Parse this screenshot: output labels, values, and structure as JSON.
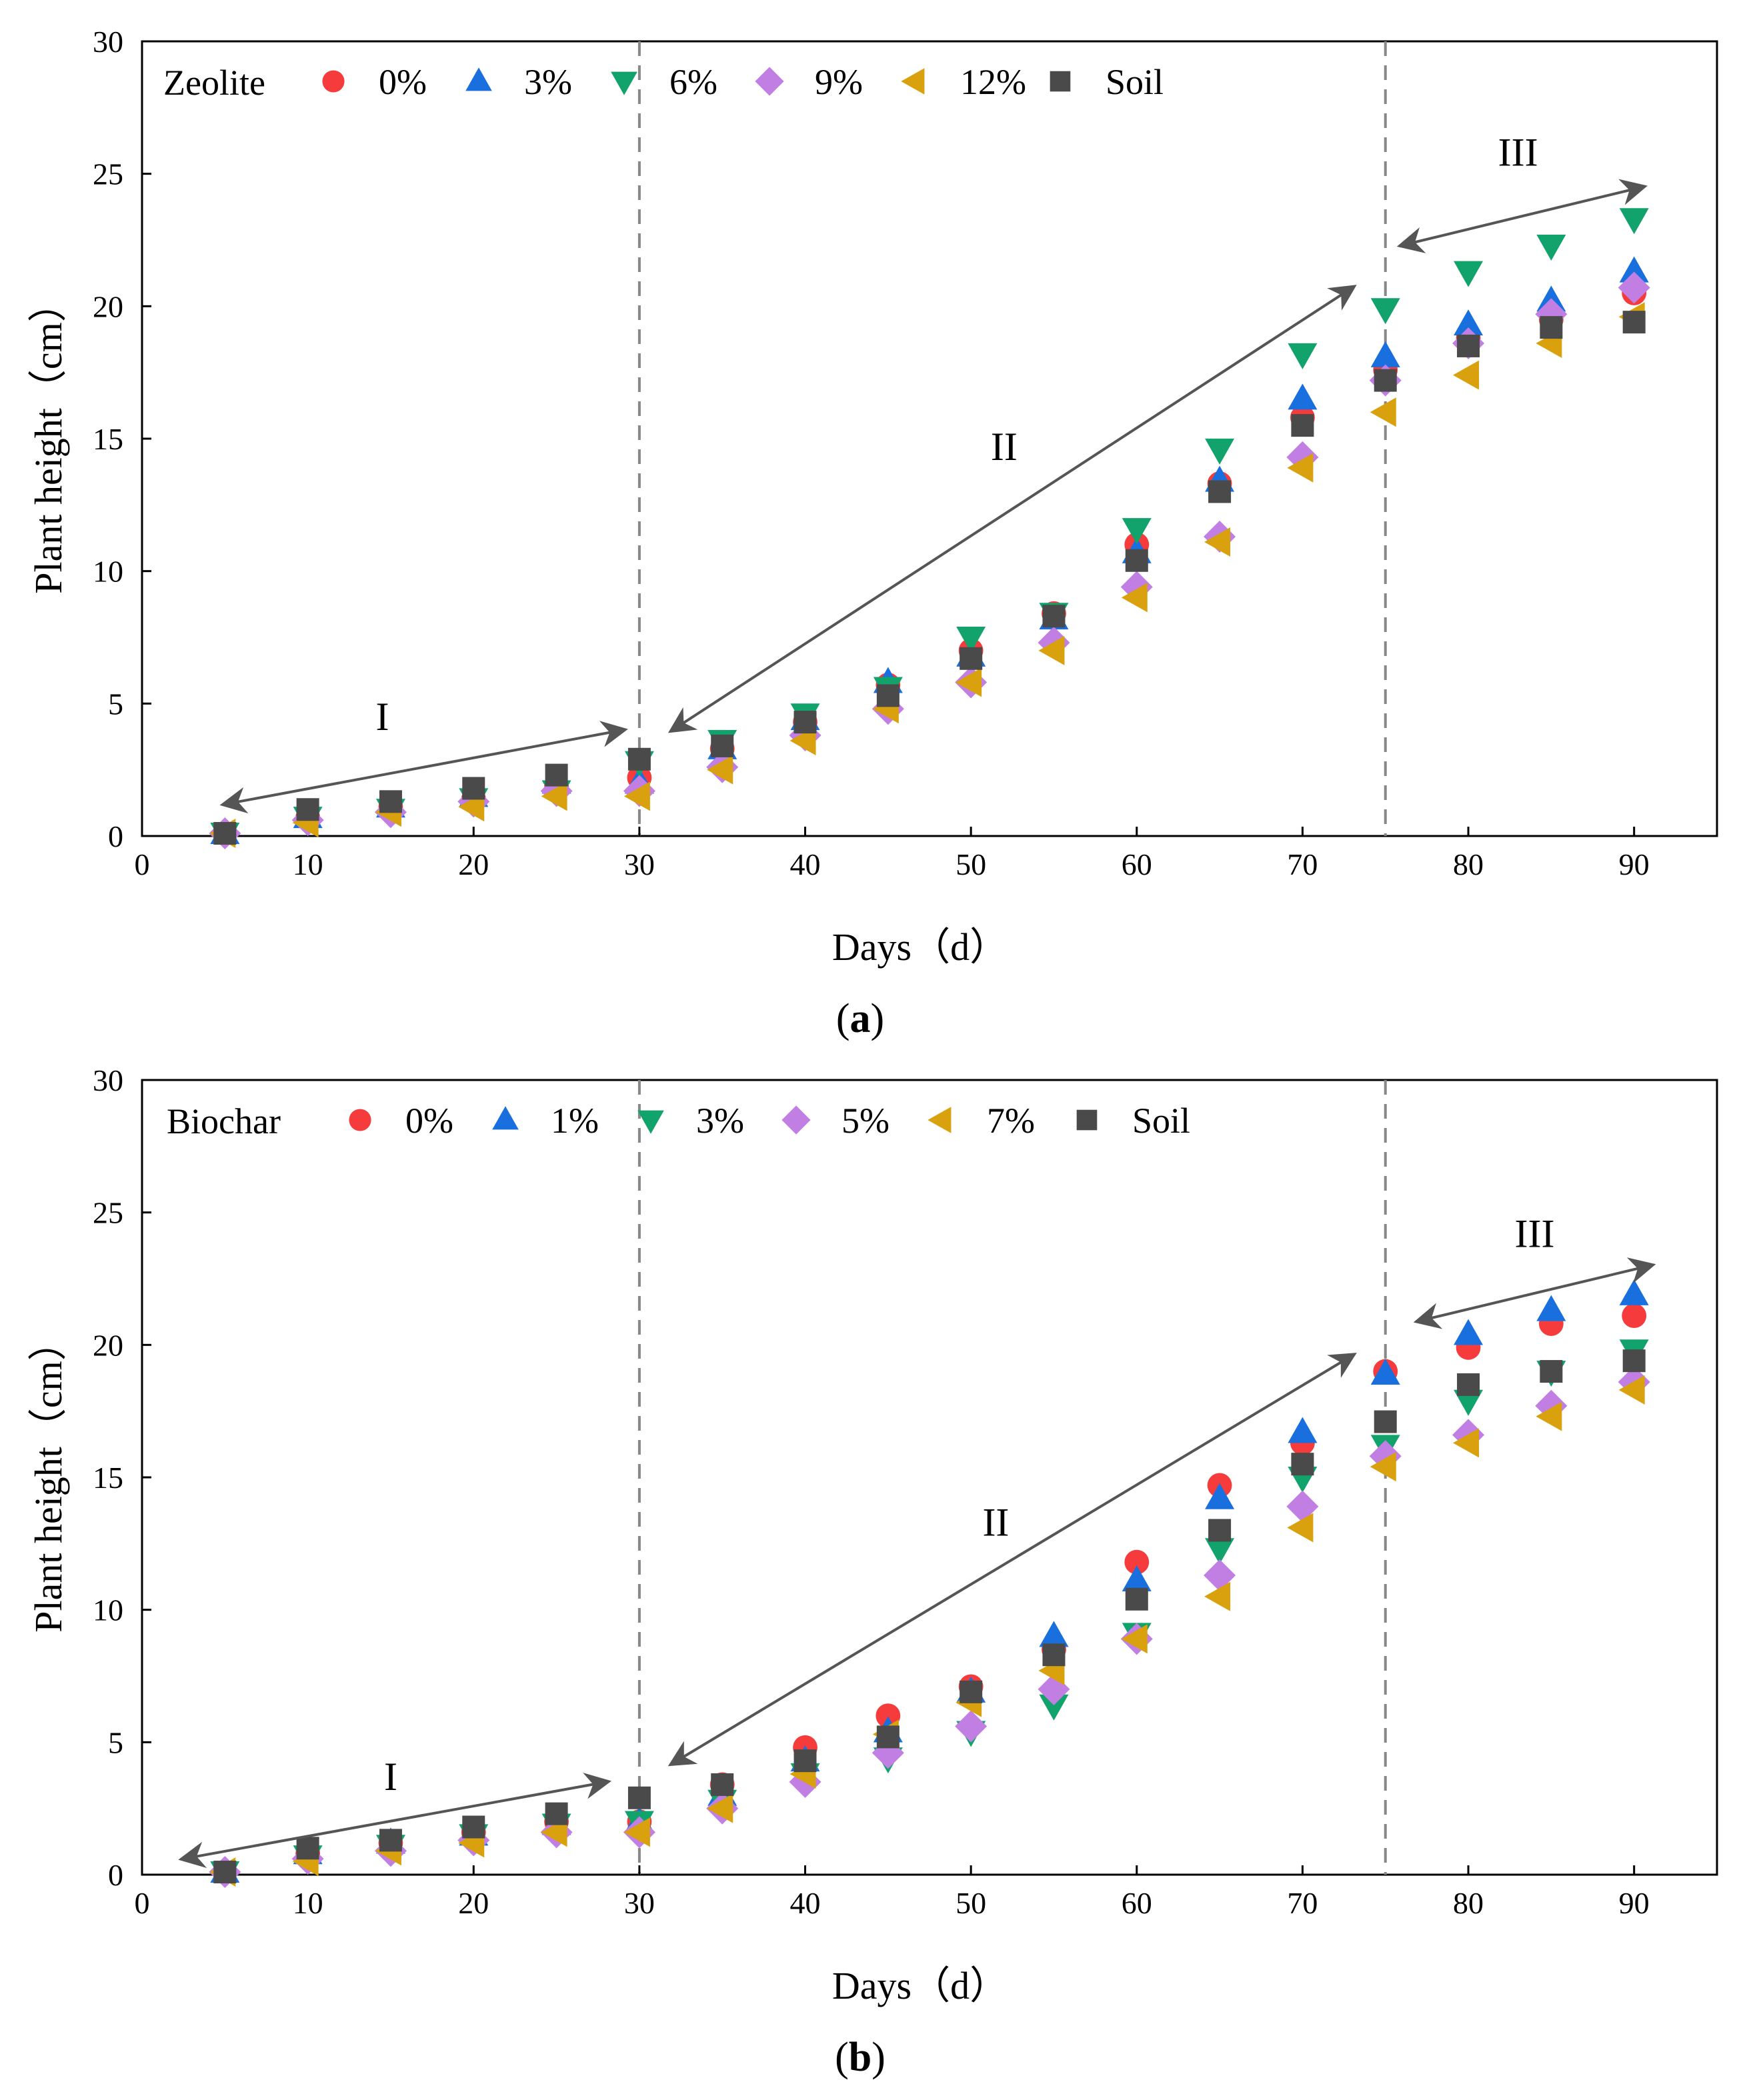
{
  "chart_data": [
    {
      "type": "scatter",
      "panel_label": "a",
      "title": "",
      "xlabel": "Days（d）",
      "ylabel": "Plant height（cm）",
      "xlim": [
        0,
        95
      ],
      "ylim": [
        0,
        30
      ],
      "xticks": [
        0,
        10,
        20,
        30,
        40,
        50,
        60,
        70,
        80,
        90
      ],
      "yticks": [
        0,
        5,
        10,
        15,
        20,
        25,
        30
      ],
      "legend_title": "Zeolite",
      "legend_position": "top",
      "x": [
        5,
        10,
        15,
        20,
        25,
        30,
        35,
        40,
        45,
        50,
        55,
        60,
        65,
        70,
        75,
        80,
        85,
        90
      ],
      "series": [
        {
          "name": "0%",
          "marker": "circle",
          "color": "#f53b3b",
          "values": [
            0.1,
            0.7,
            1.1,
            1.4,
            1.9,
            2.2,
            3.3,
            4.3,
            5.7,
            7.0,
            8.4,
            11.0,
            13.3,
            15.8,
            17.6,
            18.8,
            19.5,
            20.5
          ]
        },
        {
          "name": "3%",
          "marker": "triangle-up",
          "color": "#1a6fdf",
          "values": [
            0.1,
            0.7,
            1.1,
            1.5,
            2.0,
            2.0,
            3.3,
            4.4,
            5.8,
            6.8,
            8.2,
            10.7,
            13.4,
            16.5,
            18.1,
            19.3,
            20.2,
            21.3
          ]
        },
        {
          "name": "6%",
          "marker": "triangle-down",
          "color": "#12a26b",
          "values": [
            0.1,
            0.7,
            1.0,
            1.4,
            1.7,
            2.8,
            3.6,
            4.6,
            5.6,
            7.5,
            8.4,
            11.6,
            14.6,
            18.2,
            19.9,
            21.3,
            22.3,
            23.3
          ]
        },
        {
          "name": "9%",
          "marker": "diamond",
          "color": "#c17ee3",
          "values": [
            0.1,
            0.6,
            0.9,
            1.3,
            1.7,
            1.7,
            2.6,
            3.8,
            4.8,
            5.8,
            7.3,
            9.4,
            11.3,
            14.3,
            17.2,
            18.6,
            19.7,
            20.7
          ]
        },
        {
          "name": "12%",
          "marker": "triangle-left",
          "color": "#d9a10e",
          "values": [
            0.1,
            0.5,
            0.9,
            1.1,
            1.5,
            1.5,
            2.5,
            3.6,
            4.8,
            5.8,
            7.0,
            9.0,
            11.1,
            13.9,
            16.0,
            17.4,
            18.6,
            19.6
          ]
        },
        {
          "name": "Soil",
          "marker": "square",
          "color": "#4a4a4a",
          "values": [
            0.1,
            1.0,
            1.3,
            1.8,
            2.3,
            2.9,
            3.4,
            4.3,
            5.3,
            6.7,
            8.3,
            10.4,
            13.0,
            15.5,
            17.2,
            18.5,
            19.2,
            19.4
          ]
        }
      ],
      "dividers": [
        30,
        75
      ],
      "annotations": [
        {
          "label": "I",
          "x": 14.5,
          "y": 4.0,
          "arrow_from": [
            5,
            1.2
          ],
          "arrow_to": [
            29,
            4.0
          ]
        },
        {
          "label": "II",
          "x": 52,
          "y": 14.2,
          "arrow_from": [
            32,
            4.0
          ],
          "arrow_to": [
            73,
            20.7
          ]
        },
        {
          "label": "III",
          "x": 83,
          "y": 25.3,
          "arrow_from": [
            76,
            22.3
          ],
          "arrow_to": [
            90.5,
            24.5
          ]
        }
      ]
    },
    {
      "type": "scatter",
      "panel_label": "b",
      "title": "",
      "xlabel": "Days（d）",
      "ylabel": "Plant height（cm）",
      "xlim": [
        0,
        95
      ],
      "ylim": [
        0,
        30
      ],
      "xticks": [
        0,
        10,
        20,
        30,
        40,
        50,
        60,
        70,
        80,
        90
      ],
      "yticks": [
        0,
        5,
        10,
        15,
        20,
        25,
        30
      ],
      "legend_title": "Biochar",
      "legend_position": "top",
      "x": [
        5,
        10,
        15,
        20,
        25,
        30,
        35,
        40,
        45,
        50,
        55,
        60,
        65,
        70,
        75,
        80,
        85,
        90
      ],
      "series": [
        {
          "name": "0%",
          "marker": "circle",
          "color": "#f53b3b",
          "values": [
            0.1,
            0.8,
            1.2,
            1.6,
            2.0,
            2.0,
            3.4,
            4.8,
            6.0,
            7.1,
            8.5,
            11.8,
            14.7,
            16.3,
            19.0,
            19.9,
            20.8,
            21.1
          ]
        },
        {
          "name": "1%",
          "marker": "triangle-up",
          "color": "#1a6fdf",
          "values": [
            0.1,
            0.8,
            1.2,
            1.5,
            1.9,
            2.0,
            3.0,
            4.3,
            5.4,
            6.9,
            9.0,
            11.1,
            14.2,
            16.7,
            18.9,
            20.4,
            21.3,
            21.9
          ]
        },
        {
          "name": "3%",
          "marker": "triangle-down",
          "color": "#12a26b",
          "values": [
            0.1,
            0.7,
            1.1,
            1.5,
            1.9,
            2.0,
            2.8,
            3.8,
            4.4,
            5.4,
            6.4,
            9.1,
            12.3,
            15.0,
            16.2,
            17.9,
            19.0,
            19.8
          ]
        },
        {
          "name": "5%",
          "marker": "diamond",
          "color": "#c17ee3",
          "values": [
            0.1,
            0.6,
            0.9,
            1.3,
            1.6,
            1.6,
            2.5,
            3.5,
            4.6,
            5.6,
            7.0,
            8.9,
            11.3,
            13.9,
            15.8,
            16.6,
            17.7,
            18.6
          ]
        },
        {
          "name": "7%",
          "marker": "triangle-left",
          "color": "#d9a10e",
          "values": [
            0.1,
            0.5,
            0.9,
            1.2,
            1.6,
            1.6,
            2.5,
            3.8,
            5.3,
            6.5,
            7.7,
            8.9,
            10.5,
            13.1,
            15.4,
            16.3,
            17.3,
            18.3
          ]
        },
        {
          "name": "Soil",
          "marker": "square",
          "color": "#4a4a4a",
          "values": [
            0.1,
            1.0,
            1.3,
            1.8,
            2.3,
            2.9,
            3.4,
            4.3,
            5.2,
            6.9,
            8.3,
            10.4,
            13.0,
            15.5,
            17.1,
            18.5,
            19.0,
            19.4
          ]
        }
      ],
      "dividers": [
        30,
        75
      ],
      "annotations": [
        {
          "label": "I",
          "x": 15,
          "y": 3.2,
          "arrow_from": [
            2.5,
            0.6
          ],
          "arrow_to": [
            28,
            3.5
          ]
        },
        {
          "label": "II",
          "x": 51.5,
          "y": 12.8,
          "arrow_from": [
            32,
            4.2
          ],
          "arrow_to": [
            73,
            19.6
          ]
        },
        {
          "label": "III",
          "x": 84,
          "y": 23.7,
          "arrow_from": [
            77,
            20.9
          ],
          "arrow_to": [
            91,
            23.0
          ]
        }
      ]
    }
  ]
}
